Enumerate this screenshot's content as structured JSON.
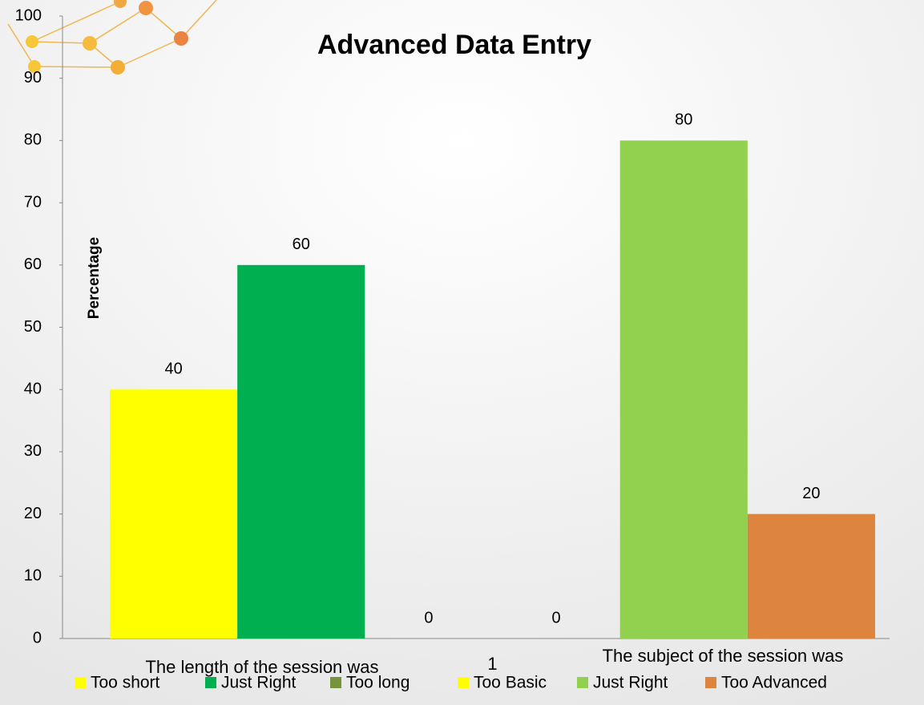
{
  "chart_data": {
    "type": "bar",
    "title": "Advanced Data Entry",
    "y_label": "Percentage",
    "categories": [
      "1"
    ],
    "annotations": [
      "The length of the session was",
      "The subject of the session was"
    ],
    "series": [
      {
        "name": "Too short",
        "color": "#ffff00",
        "values": [
          40
        ]
      },
      {
        "name": "Just Right",
        "color": "#00b050",
        "values": [
          60
        ]
      },
      {
        "name": "Too long",
        "color": "#77933c",
        "values": [
          0
        ]
      },
      {
        "name": "Too Basic",
        "color": "#ffff00",
        "values": [
          0
        ]
      },
      {
        "name": "Just Right",
        "color": "#92d050",
        "values": [
          80
        ]
      },
      {
        "name": "Too Advanced",
        "color": "#dd843f",
        "values": [
          20
        ]
      }
    ],
    "ylim": [
      0,
      100
    ],
    "yticks": [
      0,
      10,
      20,
      30,
      40,
      50,
      60,
      70,
      80,
      90,
      100
    ],
    "grid": false,
    "legend": "bottom"
  }
}
